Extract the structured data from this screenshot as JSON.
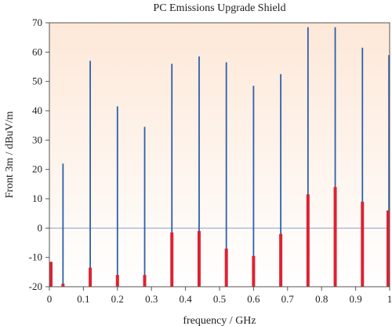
{
  "chart_data": {
    "type": "bar",
    "title": "PC Emissions Upgrade Shield",
    "xlabel": "frequency / GHz",
    "ylabel": "Front 3m / dBuV/m",
    "xlim": [
      0,
      1
    ],
    "ylim": [
      -20,
      70
    ],
    "x_ticks": [
      "0",
      "0.1",
      "0.2",
      "0.3",
      "0.4",
      "0.5",
      "0.6",
      "0.7",
      "0.8",
      "0.9",
      "1"
    ],
    "y_ticks": [
      "-20",
      "-10",
      "0",
      "10",
      "20",
      "30",
      "40",
      "50",
      "60",
      "70"
    ],
    "reference_line_y": 0,
    "x": [
      0.0,
      0.04,
      0.12,
      0.2,
      0.28,
      0.36,
      0.44,
      0.52,
      0.6,
      0.68,
      0.76,
      0.84,
      0.92,
      1.0
    ],
    "series": [
      {
        "values": [
          -13,
          22,
          57,
          41.5,
          34.5,
          56,
          58.5,
          56.5,
          48.5,
          52.5,
          68.5,
          68.5,
          61.5,
          59
        ],
        "color": "#2f5fa8"
      },
      {
        "values": [
          -11.5,
          -19,
          -13.5,
          -16,
          -16,
          -1.5,
          -1,
          -7,
          -9.5,
          -2,
          11.5,
          14,
          9,
          6
        ],
        "color": "#dd2233"
      }
    ],
    "background_gradient": [
      "#fde8d8",
      "#ffffff"
    ],
    "grid": false,
    "legend": "none"
  }
}
